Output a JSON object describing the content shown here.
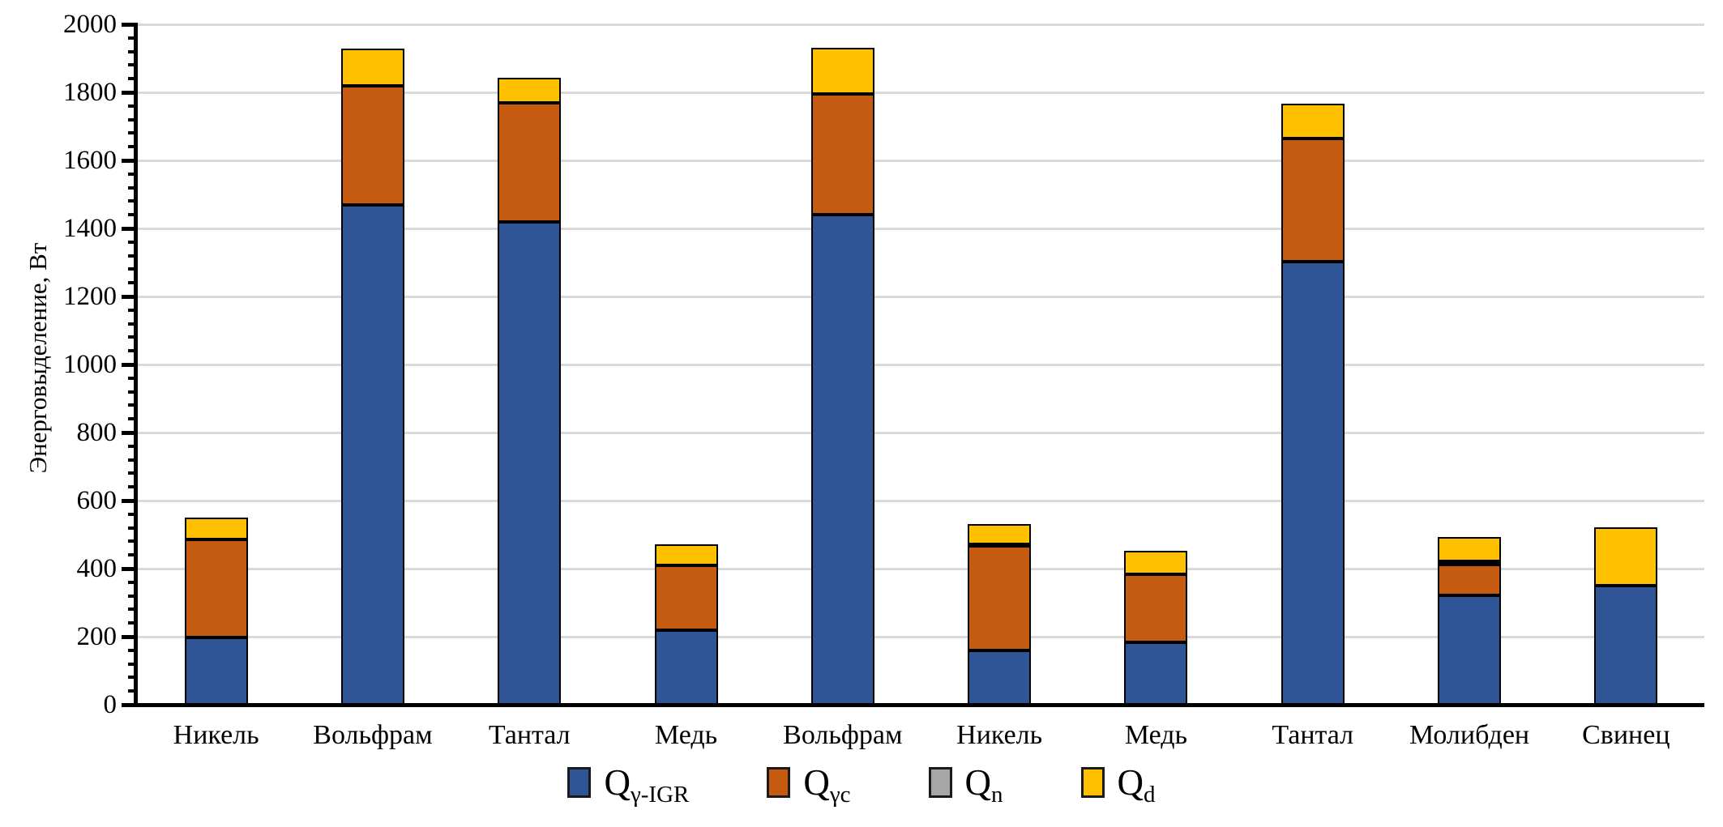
{
  "chart_data": {
    "type": "bar",
    "stacked": true,
    "title": "",
    "xlabel": "",
    "ylabel": "Энерговыделение, Вт",
    "ylim": [
      0,
      2000
    ],
    "ytick_step": 200,
    "minor_tick_step": 40,
    "grid": true,
    "legend_position": "bottom",
    "categories": [
      "Никель",
      "Вольфрам",
      "Тантал",
      "Медь",
      "Вольфрам",
      "Никель",
      "Медь",
      "Тантал",
      "Молибден",
      "Свинец"
    ],
    "series": [
      {
        "name": "Qγ-IGR",
        "color": "#2F5597",
        "values": [
          197,
          1469,
          1419,
          219,
          1440,
          160,
          183,
          1302,
          321,
          350
        ]
      },
      {
        "name": "Qγc",
        "color": "#C55A11",
        "values": [
          289,
          350,
          350,
          191,
          355,
          307,
          200,
          362,
          90,
          0
        ]
      },
      {
        "name": "Qn",
        "color": "#A6A6A6",
        "values": [
          0,
          0,
          0,
          0,
          0,
          5,
          0,
          0,
          10,
          0
        ]
      },
      {
        "name": "Qd",
        "color": "#FFC000",
        "values": [
          64,
          110,
          74,
          61,
          136,
          59,
          69,
          103,
          72,
          171
        ]
      }
    ],
    "stack_totals": [
      550,
      1929,
      1843,
      471,
      1931,
      531,
      452,
      1767,
      493,
      521
    ]
  },
  "axis": {
    "y_ticks": [
      "0",
      "200",
      "400",
      "600",
      "800",
      "1000",
      "1200",
      "1400",
      "1600",
      "1800",
      "2000"
    ],
    "ylabel": "Энерговыделение, Вт"
  },
  "legend": {
    "items": [
      {
        "main": "Q",
        "sub": "γ-IGR",
        "color": "#2F5597"
      },
      {
        "main": "Q",
        "sub": "γc",
        "color": "#C55A11"
      },
      {
        "main": "Q",
        "sub": "n",
        "color": "#A6A6A6"
      },
      {
        "main": "Q",
        "sub": "d",
        "color": "#FFC000"
      }
    ]
  },
  "colors": {
    "gridline": "#D9D9D9",
    "axis": "#000000",
    "background": "#FFFFFF",
    "bar_border": "#000000"
  }
}
